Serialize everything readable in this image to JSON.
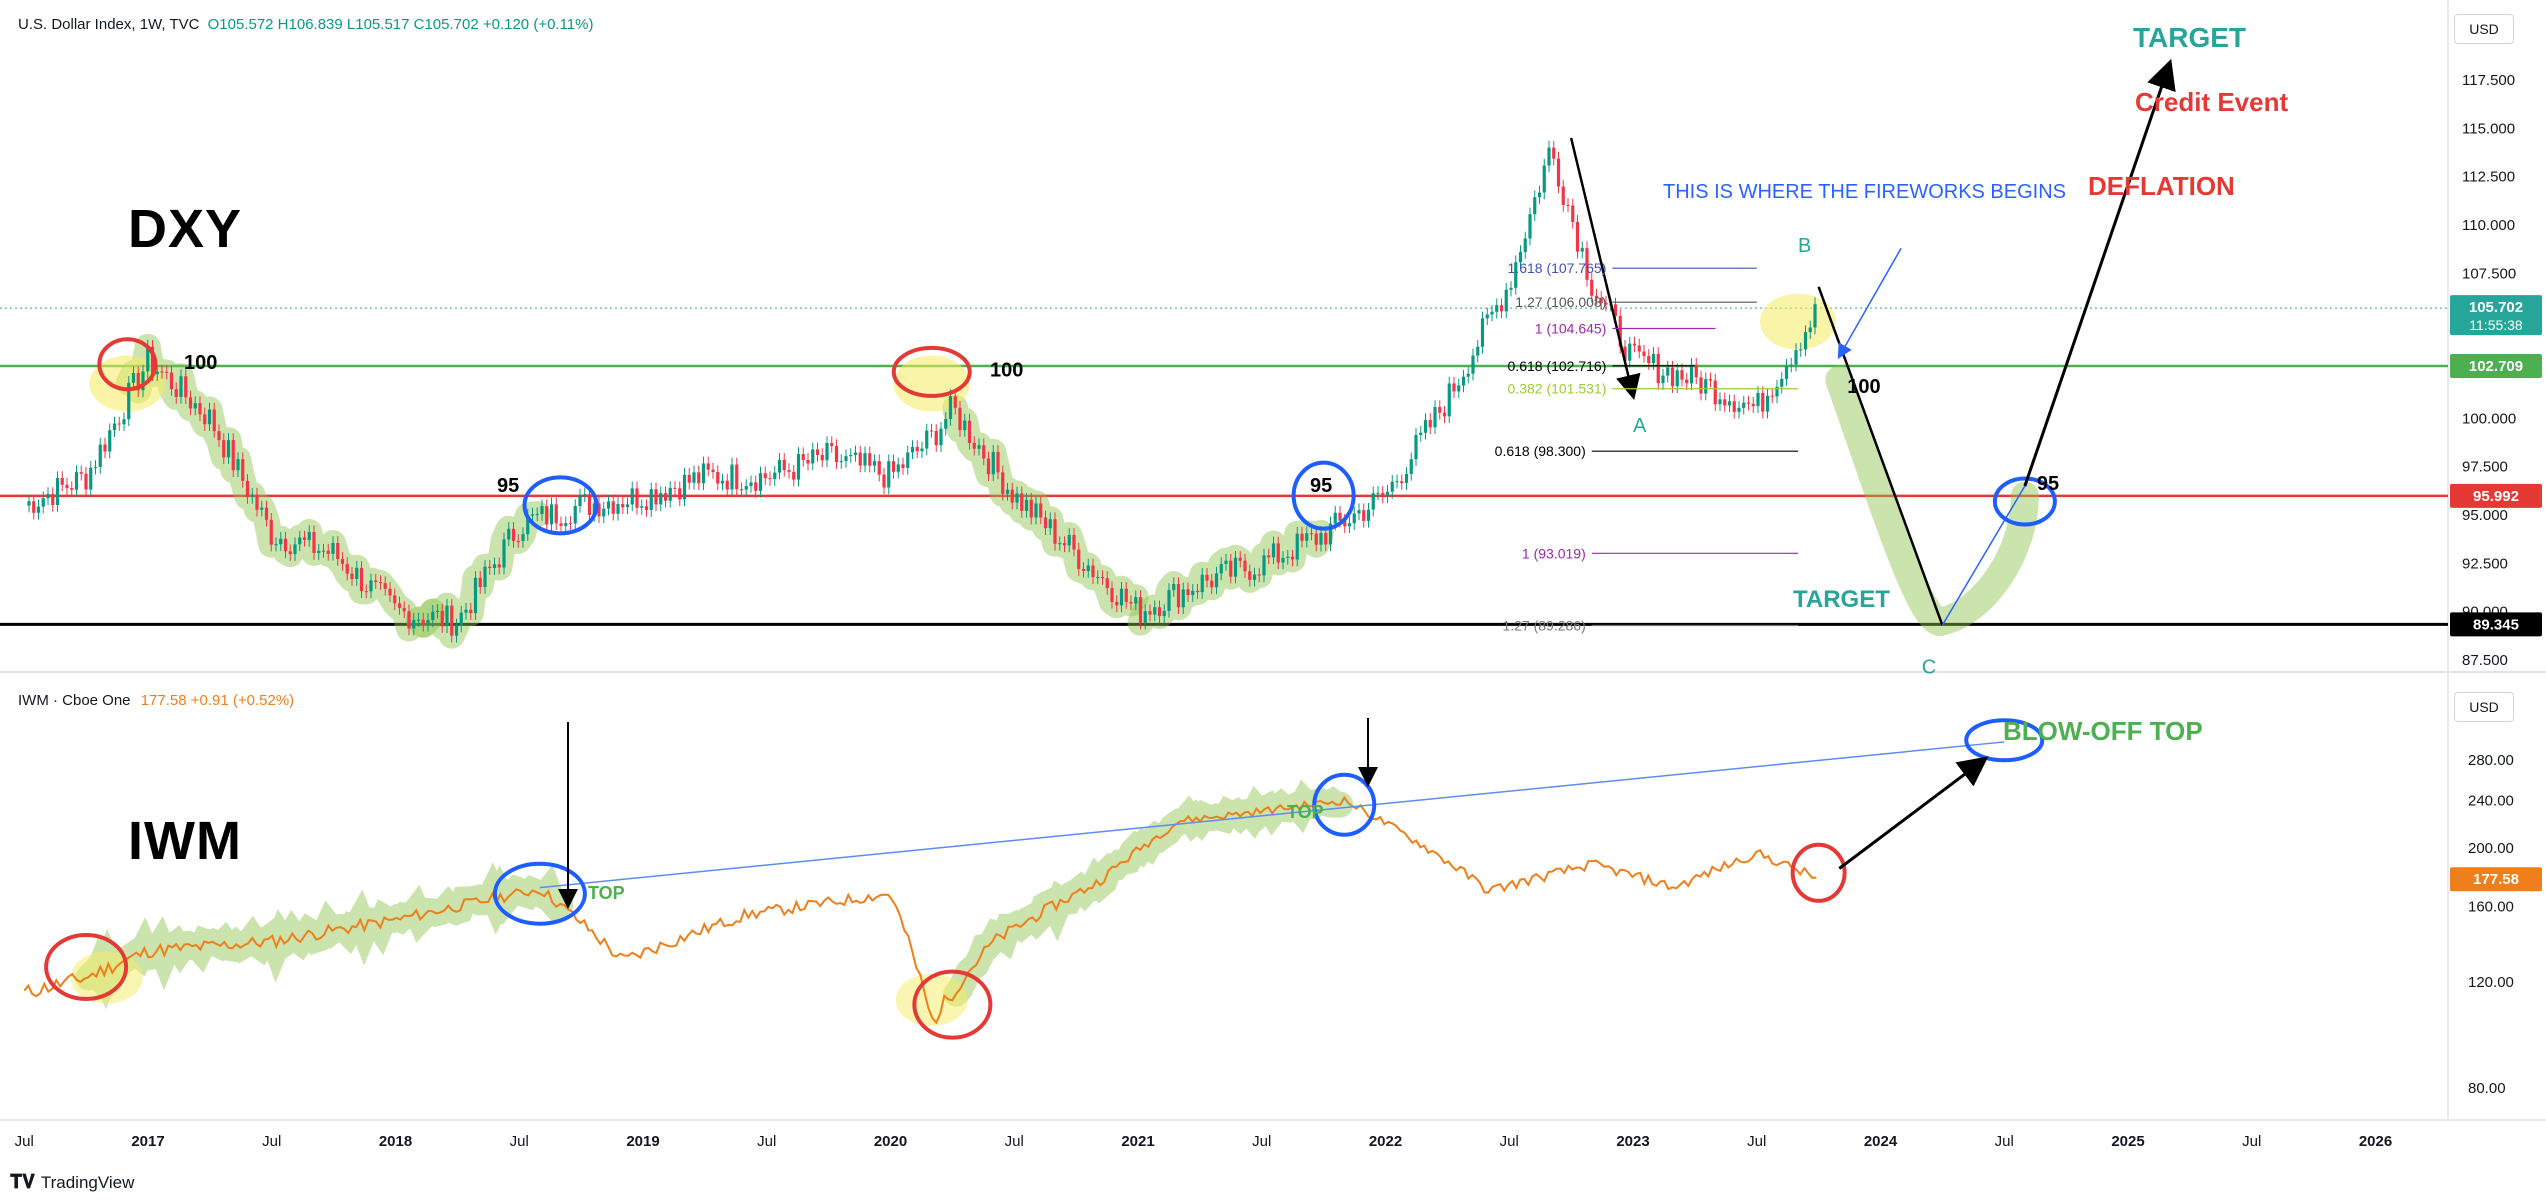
{
  "header": {
    "dxy_name": "U.S. Dollar Index, 1W, TVC",
    "dxy_ohlc": "O105.572 H106.839 L105.517 C105.702 +0.120 (+0.11%)",
    "iwm_name": "IWM · Cboe One",
    "iwm_value": "177.58 +0.91 (+0.52%)"
  },
  "labels": {
    "dxy": "DXY",
    "iwm": "IWM",
    "target_top": "TARGET",
    "credit_event": "Credit Event",
    "deflation": "DEFLATION",
    "fireworks": "THIS IS WHERE THE FIREWORKS BEGINS",
    "target_bottom": "TARGET",
    "blowoff": "BLOW-OFF TOP",
    "top1": "TOP",
    "top2": "TOP",
    "wave_a": "A",
    "wave_b": "B",
    "wave_c": "C",
    "l100_a": "100",
    "l100_b": "100",
    "l100_c": "100",
    "l95_a": "95",
    "l95_b": "95",
    "l95_c": "95"
  },
  "fib": {
    "f1618": "1.618 (107.765)",
    "f127": "1.27 (106.008)",
    "f1": "1 (104.645)",
    "f0618a": "0.618 (102.716)",
    "f0382": "0.382 (101.531)",
    "f0618b": "0.618 (98.300)",
    "f1b": "1 (93.019)",
    "f127b": "1.27 (89.286)"
  },
  "axis": {
    "currency_top": "USD",
    "currency_bottom": "USD",
    "dxy_ticks": [
      "117.500",
      "115.000",
      "112.500",
      "110.000",
      "107.500",
      "105.000",
      "100.000",
      "97.500",
      "95.000",
      "92.500",
      "90.000",
      "87.500"
    ],
    "iwm_ticks": [
      "280.00",
      "240.00",
      "200.00",
      "160.00",
      "120.00",
      "80.00"
    ],
    "x_ticks": [
      "Jul",
      "2017",
      "Jul",
      "2018",
      "Jul",
      "2019",
      "Jul",
      "2020",
      "Jul",
      "2021",
      "Jul",
      "2022",
      "Jul",
      "2023",
      "Jul",
      "2024",
      "Jul",
      "2025",
      "Jul",
      "2026"
    ],
    "price_tags": {
      "current": "105.702",
      "countdown": "11:55:38",
      "green_line": "102.709",
      "red_line": "95.992",
      "black_line": "89.345",
      "iwm_current": "177.58"
    }
  },
  "colors": {
    "up": "#089981",
    "down": "#f23645",
    "iwm_line": "#ef7f1a",
    "green_level": "#4caf50",
    "red_level": "#e53935",
    "highlight": "#8bc34a",
    "circle_red": "#e53935",
    "circle_blue": "#1e5eff",
    "trendline": "#5b8def"
  },
  "footer": {
    "brand": "TradingView"
  },
  "chart_data": [
    {
      "type": "line",
      "title": "U.S. Dollar Index, 1W, TVC",
      "ylabel": "USD",
      "ylim": [
        86.5,
        119.5
      ],
      "scale": "linear",
      "x": [
        "2016-07",
        "2016-10",
        "2017-01",
        "2017-04",
        "2017-07",
        "2017-10",
        "2018-01",
        "2018-04",
        "2018-07",
        "2018-10",
        "2019-01",
        "2019-04",
        "2019-07",
        "2019-10",
        "2020-01",
        "2020-03",
        "2020-04",
        "2020-07",
        "2020-10",
        "2021-01",
        "2021-04",
        "2021-07",
        "2021-10",
        "2022-01",
        "2022-04",
        "2022-07",
        "2022-09",
        "2022-11",
        "2023-01",
        "2023-04",
        "2023-07",
        "2023-10"
      ],
      "series": [
        {
          "values": [
            95.5,
            97.0,
            103.0,
            100.0,
            94.0,
            93.0,
            90.0,
            89.5,
            94.5,
            95.5,
            96.0,
            97.0,
            97.0,
            98.0,
            97.0,
            99.0,
            100.5,
            96.0,
            93.0,
            90.0,
            91.5,
            92.5,
            94.0,
            96.0,
            101.0,
            107.0,
            114.0,
            107.0,
            103.0,
            102.0,
            100.5,
            105.702
          ]
        }
      ],
      "levels": [
        102.709,
        95.992,
        89.345
      ]
    },
    {
      "type": "line",
      "title": "IWM · Cboe One",
      "ylabel": "USD",
      "ylim": [
        60,
        310
      ],
      "scale": "log",
      "x": [
        "2016-07",
        "2016-10",
        "2017-01",
        "2017-07",
        "2018-01",
        "2018-08",
        "2018-12",
        "2019-06",
        "2020-01",
        "2020-03",
        "2020-06",
        "2020-11",
        "2021-03",
        "2021-06",
        "2021-11",
        "2022-06",
        "2022-11",
        "2023-03",
        "2023-07",
        "2023-10"
      ],
      "series": [
        {
          "values": [
            115,
            122,
            135,
            140,
            152,
            171,
            130,
            155,
            168,
            103,
            140,
            175,
            222,
            228,
            240,
            170,
            188,
            172,
            196,
            177.58
          ]
        }
      ]
    }
  ]
}
